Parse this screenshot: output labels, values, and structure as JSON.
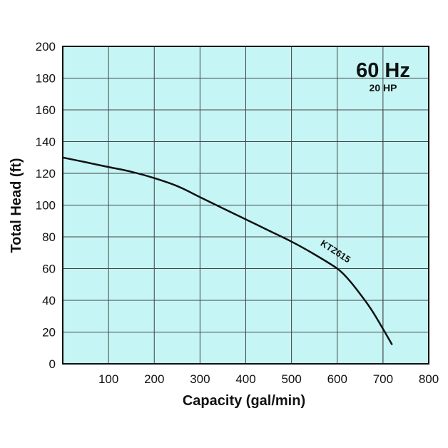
{
  "chart_data": {
    "type": "line",
    "xlabel": "Capacity (gal/min)",
    "ylabel": "Total Head (ft)",
    "xlim": [
      0,
      800
    ],
    "ylim": [
      0,
      200
    ],
    "x_ticks": [
      100,
      200,
      300,
      400,
      500,
      600,
      700,
      800
    ],
    "y_ticks": [
      0,
      20,
      40,
      60,
      80,
      100,
      120,
      140,
      160,
      180,
      200
    ],
    "grid": true,
    "background_color": "#c5f5f5",
    "line_color": "#111111",
    "annotation": {
      "frequency": "60 Hz",
      "power": "20 HP"
    },
    "reference_line_x": 700,
    "reference_line_top": 160,
    "series": [
      {
        "name": "KTZ615",
        "x": [
          0,
          50,
          100,
          150,
          200,
          250,
          300,
          350,
          400,
          450,
          500,
          550,
          600,
          625,
          650,
          675,
          700,
          720
        ],
        "y": [
          130,
          127,
          124,
          121,
          117,
          112,
          105,
          98,
          91,
          84,
          77,
          69,
          60,
          53,
          44,
          34,
          22,
          12
        ]
      }
    ]
  }
}
